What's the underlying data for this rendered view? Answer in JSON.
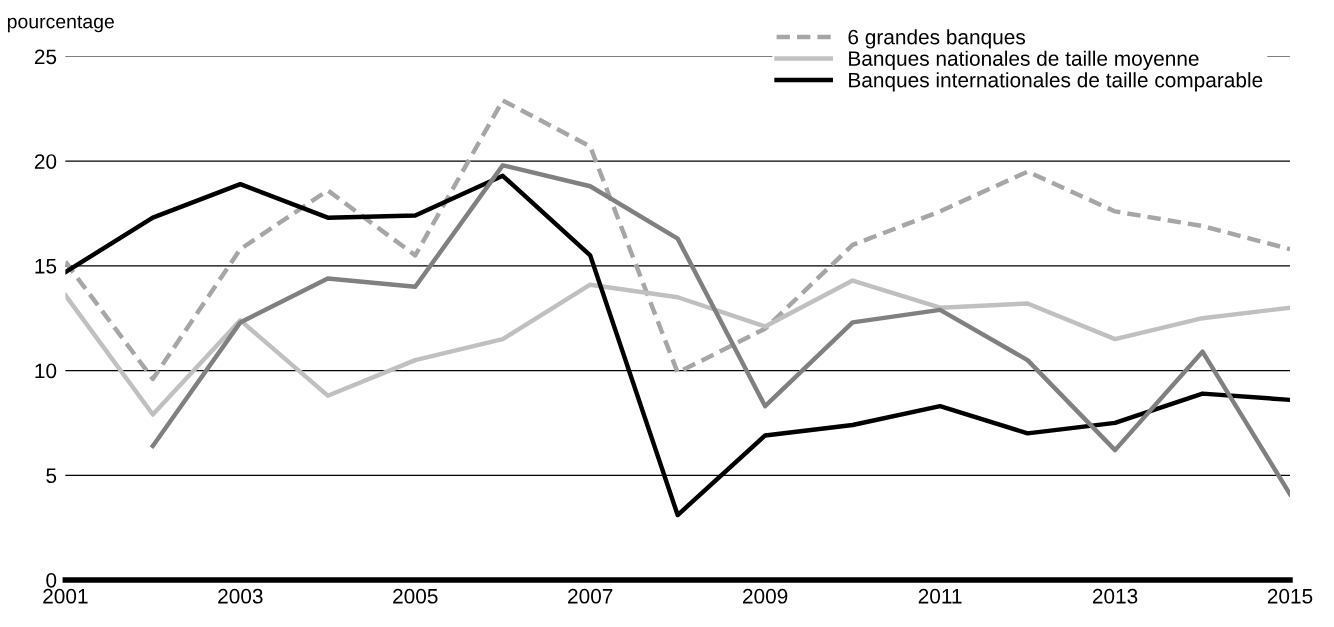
{
  "chart_data": {
    "type": "line",
    "ylabel": "pourcentage",
    "x": [
      2001,
      2002,
      2003,
      2004,
      2005,
      2006,
      2007,
      2008,
      2009,
      2010,
      2011,
      2012,
      2013,
      2014,
      2015
    ],
    "xlim": [
      2001,
      2015
    ],
    "xticks": [
      2001,
      2003,
      2005,
      2007,
      2009,
      2011,
      2013,
      2015
    ],
    "ylim": [
      0,
      25
    ],
    "yticks": [
      0,
      5,
      10,
      15,
      20,
      25
    ],
    "grid": "y",
    "legend": "top right",
    "marker": "none",
    "series": [
      {
        "name": "6 grandes banques",
        "color": "#a6a6a6",
        "line_style": "dashed",
        "values": [
          15.2,
          9.6,
          15.8,
          18.6,
          15.5,
          22.9,
          20.7,
          9.9,
          12.0,
          16.0,
          17.6,
          19.5,
          17.6,
          16.9,
          15.8
        ]
      },
      {
        "name": "Banques nationales de taille moyenne",
        "color": "#c0c0c0",
        "line_style": "solid",
        "values": [
          13.6,
          7.9,
          12.4,
          8.8,
          10.5,
          11.5,
          14.1,
          13.5,
          12.1,
          14.3,
          13.0,
          13.2,
          11.5,
          12.5,
          13.0
        ]
      },
      {
        "name": "Banques internationales de taille comparable",
        "color": "#000000",
        "line_style": "solid",
        "values": [
          14.7,
          17.3,
          18.9,
          17.3,
          17.4,
          19.3,
          15.5,
          3.1,
          6.9,
          7.4,
          8.3,
          7.0,
          7.5,
          8.9,
          8.6
        ]
      },
      {
        "color": "#808080",
        "line_style": "solid",
        "values": [
          null,
          6.4,
          12.3,
          14.4,
          14.0,
          19.8,
          18.8,
          16.3,
          8.3,
          12.3,
          12.9,
          10.5,
          6.2,
          10.9,
          4.1
        ]
      }
    ]
  }
}
